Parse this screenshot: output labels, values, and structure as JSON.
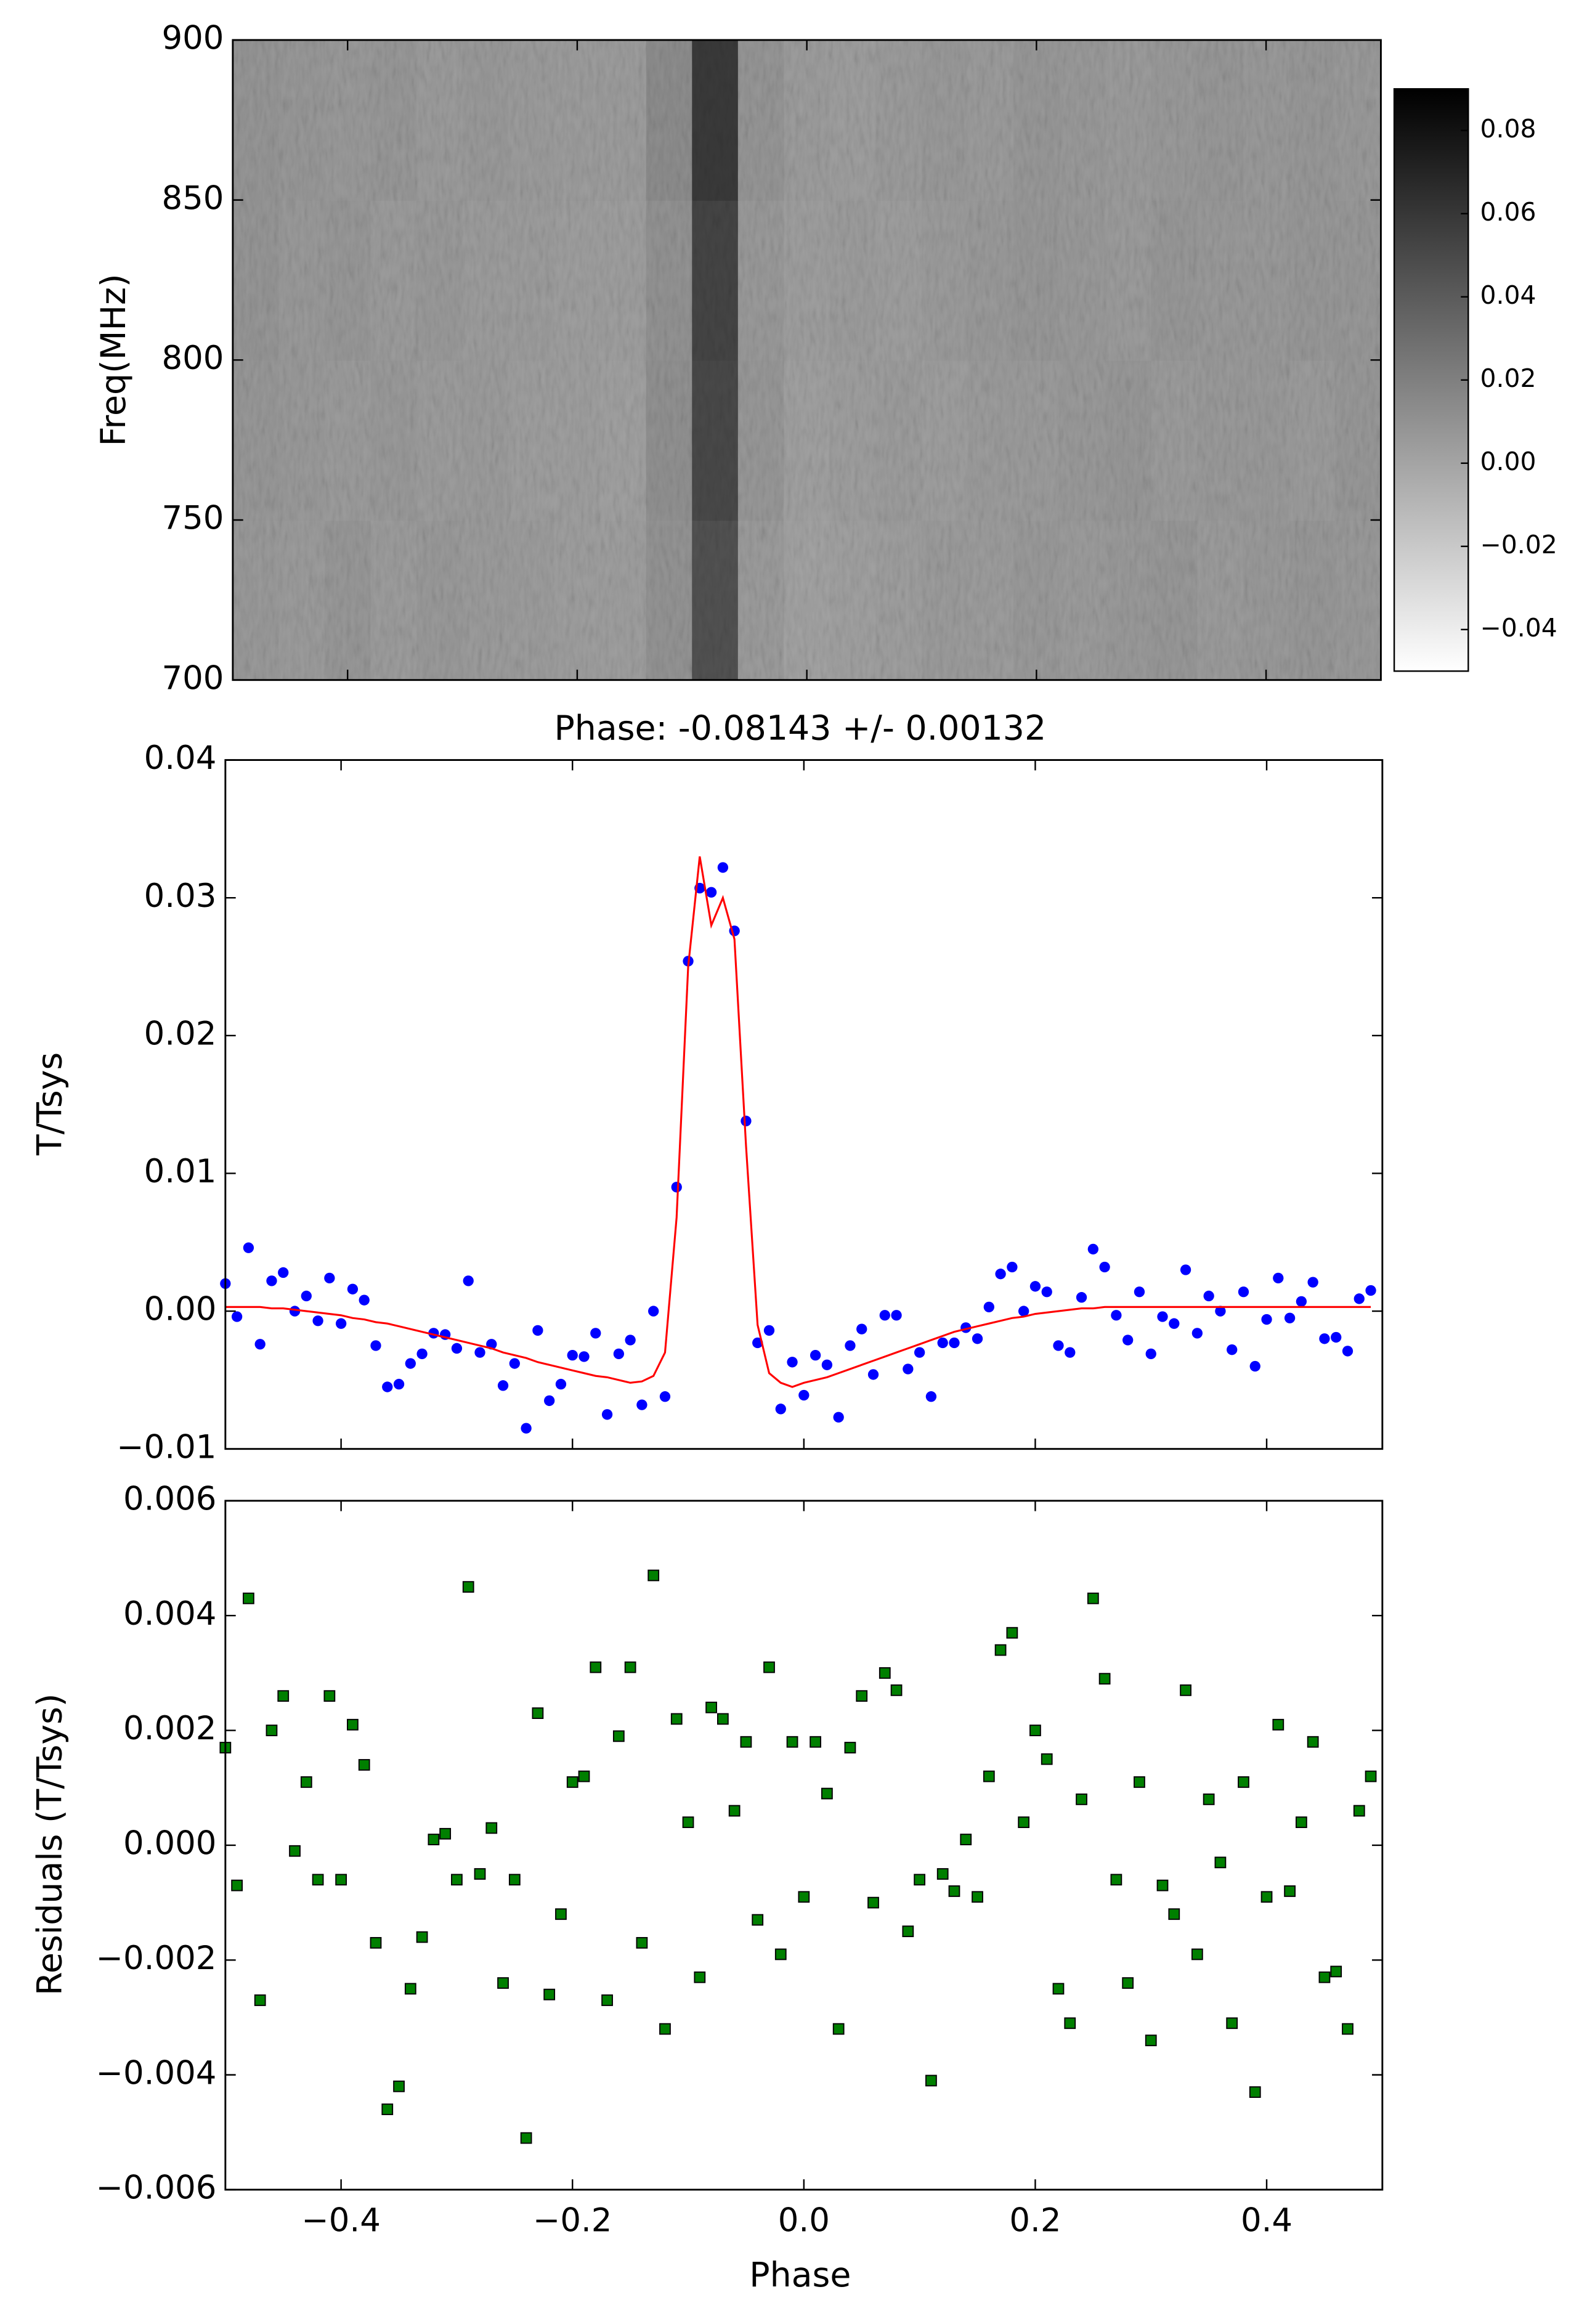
{
  "chart_data": [
    {
      "type": "heatmap",
      "y_label": "Freq(MHz)",
      "xlim": [
        -0.5,
        0.5
      ],
      "xticks": [
        -0.4,
        -0.2,
        0.0,
        0.2,
        0.4
      ],
      "ylim": [
        700,
        900
      ],
      "yticks": [
        700,
        750,
        800,
        850,
        900
      ],
      "xbins": [
        -0.5,
        -0.46,
        -0.42,
        -0.38,
        -0.34,
        -0.3,
        -0.26,
        -0.22,
        -0.18,
        -0.14,
        -0.1,
        -0.06,
        -0.02,
        0.02,
        0.06,
        0.1,
        0.14,
        0.18,
        0.22,
        0.26,
        0.3,
        0.34,
        0.38,
        0.42,
        0.46,
        0.5
      ],
      "ybins": [
        700,
        750,
        800,
        850,
        900
      ],
      "values": [
        [
          0.005,
          0.004,
          0.006,
          0.003,
          0.005,
          0.004,
          0.003,
          0.002,
          0.002,
          0.008,
          0.045,
          0.004,
          0.0,
          0.001,
          0.002,
          0.004,
          0.003,
          0.005,
          0.004,
          0.005,
          0.006,
          0.004,
          0.005,
          0.006,
          0.005
        ],
        [
          0.006,
          0.005,
          0.004,
          0.005,
          0.003,
          0.004,
          0.002,
          0.002,
          0.001,
          0.01,
          0.05,
          0.006,
          0.001,
          0.002,
          0.003,
          0.002,
          0.004,
          0.004,
          0.005,
          0.006,
          0.004,
          0.005,
          0.005,
          0.004,
          0.006
        ],
        [
          0.007,
          0.005,
          0.006,
          0.004,
          0.005,
          0.003,
          0.003,
          0.002,
          0.002,
          0.009,
          0.052,
          0.005,
          0.002,
          0.003,
          0.002,
          0.004,
          0.005,
          0.006,
          0.005,
          0.004,
          0.006,
          0.005,
          0.005,
          0.006,
          0.006
        ],
        [
          0.007,
          0.006,
          0.005,
          0.006,
          0.004,
          0.005,
          0.004,
          0.003,
          0.003,
          0.012,
          0.058,
          0.007,
          0.003,
          0.002,
          0.004,
          0.005,
          0.004,
          0.006,
          0.005,
          0.004,
          0.005,
          0.006,
          0.005,
          0.006,
          0.005
        ]
      ],
      "clim": [
        -0.05,
        0.09
      ],
      "colorbar_ticks": [
        0.08,
        0.06,
        0.04,
        0.02,
        {
          "value": 0.0,
          "label": "0.00"
        },
        {
          "value": -0.02,
          "label": "−0.02"
        },
        {
          "value": -0.04,
          "label": "−0.04"
        }
      ]
    },
    {
      "type": "scatter",
      "title": "Phase: -0.08143 +/- 0.00132",
      "y_label": "T/Tsys",
      "xlim": [
        -0.5,
        0.5
      ],
      "xticks": [
        -0.4,
        -0.2,
        0.0,
        0.2,
        0.4
      ],
      "ylim": [
        -0.01,
        0.04
      ],
      "yticks": [
        {
          "value": -0.01,
          "label": "−0.01"
        },
        {
          "value": 0.0,
          "label": "0.00"
        },
        0.01,
        0.02,
        0.03,
        0.04
      ],
      "x": [
        -0.5,
        -0.49,
        -0.48,
        -0.47,
        -0.46,
        -0.45,
        -0.44,
        -0.43,
        -0.42,
        -0.41,
        -0.4,
        -0.39,
        -0.38,
        -0.37,
        -0.36,
        -0.35,
        -0.34,
        -0.33,
        -0.32,
        -0.31,
        -0.3,
        -0.29,
        -0.28,
        -0.27,
        -0.26,
        -0.25,
        -0.24,
        -0.23,
        -0.22,
        -0.21,
        -0.2,
        -0.19,
        -0.18,
        -0.17,
        -0.16,
        -0.15,
        -0.14,
        -0.13,
        -0.12,
        -0.11,
        -0.1,
        -0.09,
        -0.08,
        -0.07,
        -0.06,
        -0.05,
        -0.04,
        -0.03,
        -0.02,
        -0.01,
        0.0,
        0.01,
        0.02,
        0.03,
        0.04,
        0.05,
        0.06,
        0.07,
        0.08,
        0.09,
        0.1,
        0.11,
        0.12,
        0.13,
        0.14,
        0.15,
        0.16,
        0.17,
        0.18,
        0.19,
        0.2,
        0.21,
        0.22,
        0.23,
        0.24,
        0.25,
        0.26,
        0.27,
        0.28,
        0.29,
        0.3,
        0.31,
        0.32,
        0.33,
        0.34,
        0.35,
        0.36,
        0.37,
        0.38,
        0.39,
        0.4,
        0.41,
        0.42,
        0.43,
        0.44,
        0.45,
        0.46,
        0.47,
        0.48,
        0.49
      ],
      "series": [
        {
          "color": "#0000ff",
          "marker": "circle",
          "values": [
            0.002,
            -0.0004,
            0.0046,
            -0.0024,
            0.0022,
            0.0028,
            0.0,
            0.0011,
            -0.0007,
            0.0024,
            -0.0009,
            0.0016,
            0.0008,
            -0.0025,
            -0.0055,
            -0.0053,
            -0.0038,
            -0.0031,
            -0.0016,
            -0.0017,
            -0.0027,
            0.0022,
            -0.003,
            -0.0024,
            -0.0054,
            -0.0038,
            -0.0085,
            -0.0014,
            -0.0065,
            -0.0053,
            -0.0032,
            -0.0033,
            -0.0016,
            -0.0075,
            -0.0031,
            -0.0021,
            -0.0068,
            0.0,
            -0.0062,
            0.009,
            0.0254,
            0.0307,
            0.0304,
            0.0322,
            0.0276,
            0.0138,
            -0.0023,
            -0.0014,
            -0.0071,
            -0.0037,
            -0.0061,
            -0.0032,
            -0.0039,
            -0.0077,
            -0.0025,
            -0.0013,
            -0.0046,
            -0.0003,
            -0.0003,
            -0.0042,
            -0.003,
            -0.0062,
            -0.0023,
            -0.0023,
            -0.0012,
            -0.002,
            0.0003,
            0.0027,
            0.0032,
            0.0,
            0.0018,
            0.0014,
            -0.0025,
            -0.003,
            0.001,
            0.0045,
            0.0032,
            -0.0003,
            -0.0021,
            0.0014,
            -0.0031,
            -0.0004,
            -0.0009,
            0.003,
            -0.0016,
            0.0011,
            0.0,
            -0.0028,
            0.0014,
            -0.004,
            -0.0006,
            0.0024,
            -0.0005,
            0.0007,
            0.0021,
            -0.002,
            -0.0019,
            -0.0029,
            0.0009,
            0.0015
          ]
        },
        {
          "color": "#ff0000",
          "marker": "line",
          "values": [
            0.0003,
            0.0003,
            0.0003,
            0.0003,
            0.0002,
            0.0002,
            0.0001,
            0.0,
            -0.0001,
            -0.0002,
            -0.0003,
            -0.0005,
            -0.0006,
            -0.0008,
            -0.0009,
            -0.0011,
            -0.0013,
            -0.0015,
            -0.0017,
            -0.0019,
            -0.0021,
            -0.0023,
            -0.0025,
            -0.0027,
            -0.003,
            -0.0032,
            -0.0034,
            -0.0037,
            -0.0039,
            -0.0041,
            -0.0043,
            -0.0045,
            -0.0047,
            -0.0048,
            -0.005,
            -0.0052,
            -0.0051,
            -0.0047,
            -0.003,
            0.0068,
            0.025,
            0.033,
            0.028,
            0.03,
            0.027,
            0.012,
            -0.001,
            -0.0045,
            -0.0052,
            -0.0055,
            -0.0052,
            -0.005,
            -0.0048,
            -0.0045,
            -0.0042,
            -0.0039,
            -0.0036,
            -0.0033,
            -0.003,
            -0.0027,
            -0.0024,
            -0.0021,
            -0.0018,
            -0.0015,
            -0.0013,
            -0.0011,
            -0.0009,
            -0.0007,
            -0.0005,
            -0.0004,
            -0.0002,
            -0.0001,
            0.0,
            0.0001,
            0.0002,
            0.0002,
            0.0003,
            0.0003,
            0.0003,
            0.0003,
            0.0003,
            0.0003,
            0.0003,
            0.0003,
            0.0003,
            0.0003,
            0.0003,
            0.0003,
            0.0003,
            0.0003,
            0.0003,
            0.0003,
            0.0003,
            0.0003,
            0.0003,
            0.0003,
            0.0003,
            0.0003,
            0.0003,
            0.0003
          ]
        }
      ]
    },
    {
      "type": "scatter",
      "x_label": "Phase",
      "y_label": "Residuals (T/Tsys)",
      "xlim": [
        -0.5,
        0.5
      ],
      "xticks": [
        {
          "value": -0.4,
          "label": "−0.4"
        },
        {
          "value": -0.2,
          "label": "−0.2"
        },
        {
          "value": 0.0,
          "label": "0.0"
        },
        0.2,
        0.4
      ],
      "ylim": [
        -0.006,
        0.006
      ],
      "yticks": [
        {
          "value": -0.006,
          "label": "−0.006"
        },
        {
          "value": -0.004,
          "label": "−0.004"
        },
        {
          "value": -0.002,
          "label": "−0.002"
        },
        {
          "value": 0.0,
          "label": "0.000"
        },
        0.002,
        0.004,
        0.006
      ],
      "x": [
        -0.5,
        -0.49,
        -0.48,
        -0.47,
        -0.46,
        -0.45,
        -0.44,
        -0.43,
        -0.42,
        -0.41,
        -0.4,
        -0.39,
        -0.38,
        -0.37,
        -0.36,
        -0.35,
        -0.34,
        -0.33,
        -0.32,
        -0.31,
        -0.3,
        -0.29,
        -0.28,
        -0.27,
        -0.26,
        -0.25,
        -0.24,
        -0.23,
        -0.22,
        -0.21,
        -0.2,
        -0.19,
        -0.18,
        -0.17,
        -0.16,
        -0.15,
        -0.14,
        -0.13,
        -0.12,
        -0.11,
        -0.1,
        -0.09,
        -0.08,
        -0.07,
        -0.06,
        -0.05,
        -0.04,
        -0.03,
        -0.02,
        -0.01,
        0.0,
        0.01,
        0.02,
        0.03,
        0.04,
        0.05,
        0.06,
        0.07,
        0.08,
        0.09,
        0.1,
        0.11,
        0.12,
        0.13,
        0.14,
        0.15,
        0.16,
        0.17,
        0.18,
        0.19,
        0.2,
        0.21,
        0.22,
        0.23,
        0.24,
        0.25,
        0.26,
        0.27,
        0.28,
        0.29,
        0.3,
        0.31,
        0.32,
        0.33,
        0.34,
        0.35,
        0.36,
        0.37,
        0.38,
        0.39,
        0.4,
        0.41,
        0.42,
        0.43,
        0.44,
        0.45,
        0.46,
        0.47,
        0.48,
        0.49
      ],
      "series": [
        {
          "color": "#007f00",
          "marker": "square",
          "values": [
            0.0017,
            -0.0007,
            0.0043,
            -0.0027,
            0.002,
            0.0026,
            -0.0001,
            0.0011,
            -0.0006,
            0.0026,
            -0.0006,
            0.0021,
            0.0014,
            -0.0017,
            -0.0046,
            -0.0042,
            -0.0025,
            -0.0016,
            0.0001,
            0.0002,
            -0.0006,
            0.0045,
            -0.0005,
            0.0003,
            -0.0024,
            -0.0006,
            -0.0051,
            0.0023,
            -0.0026,
            -0.0012,
            0.0011,
            0.0012,
            0.0031,
            -0.0027,
            0.0019,
            0.0031,
            -0.0017,
            0.0047,
            -0.0032,
            0.0022,
            0.0004,
            -0.0023,
            0.0024,
            0.0022,
            0.0006,
            0.0018,
            -0.0013,
            0.0031,
            -0.0019,
            0.0018,
            -0.0009,
            0.0018,
            0.0009,
            -0.0032,
            0.0017,
            0.0026,
            -0.001,
            0.003,
            0.0027,
            -0.0015,
            -0.0006,
            -0.0041,
            -0.0005,
            -0.0008,
            0.0001,
            -0.0009,
            0.0012,
            0.0034,
            0.0037,
            0.0004,
            0.002,
            0.0015,
            -0.0025,
            -0.0031,
            0.0008,
            0.0043,
            0.0029,
            -0.0006,
            -0.0024,
            0.0011,
            -0.0034,
            -0.0007,
            -0.0012,
            0.0027,
            -0.0019,
            0.0008,
            -0.0003,
            -0.0031,
            0.0011,
            -0.0043,
            -0.0009,
            0.0021,
            -0.0008,
            0.0004,
            0.0018,
            -0.0023,
            -0.0022,
            -0.0032,
            0.0006,
            0.0012
          ]
        }
      ]
    }
  ]
}
